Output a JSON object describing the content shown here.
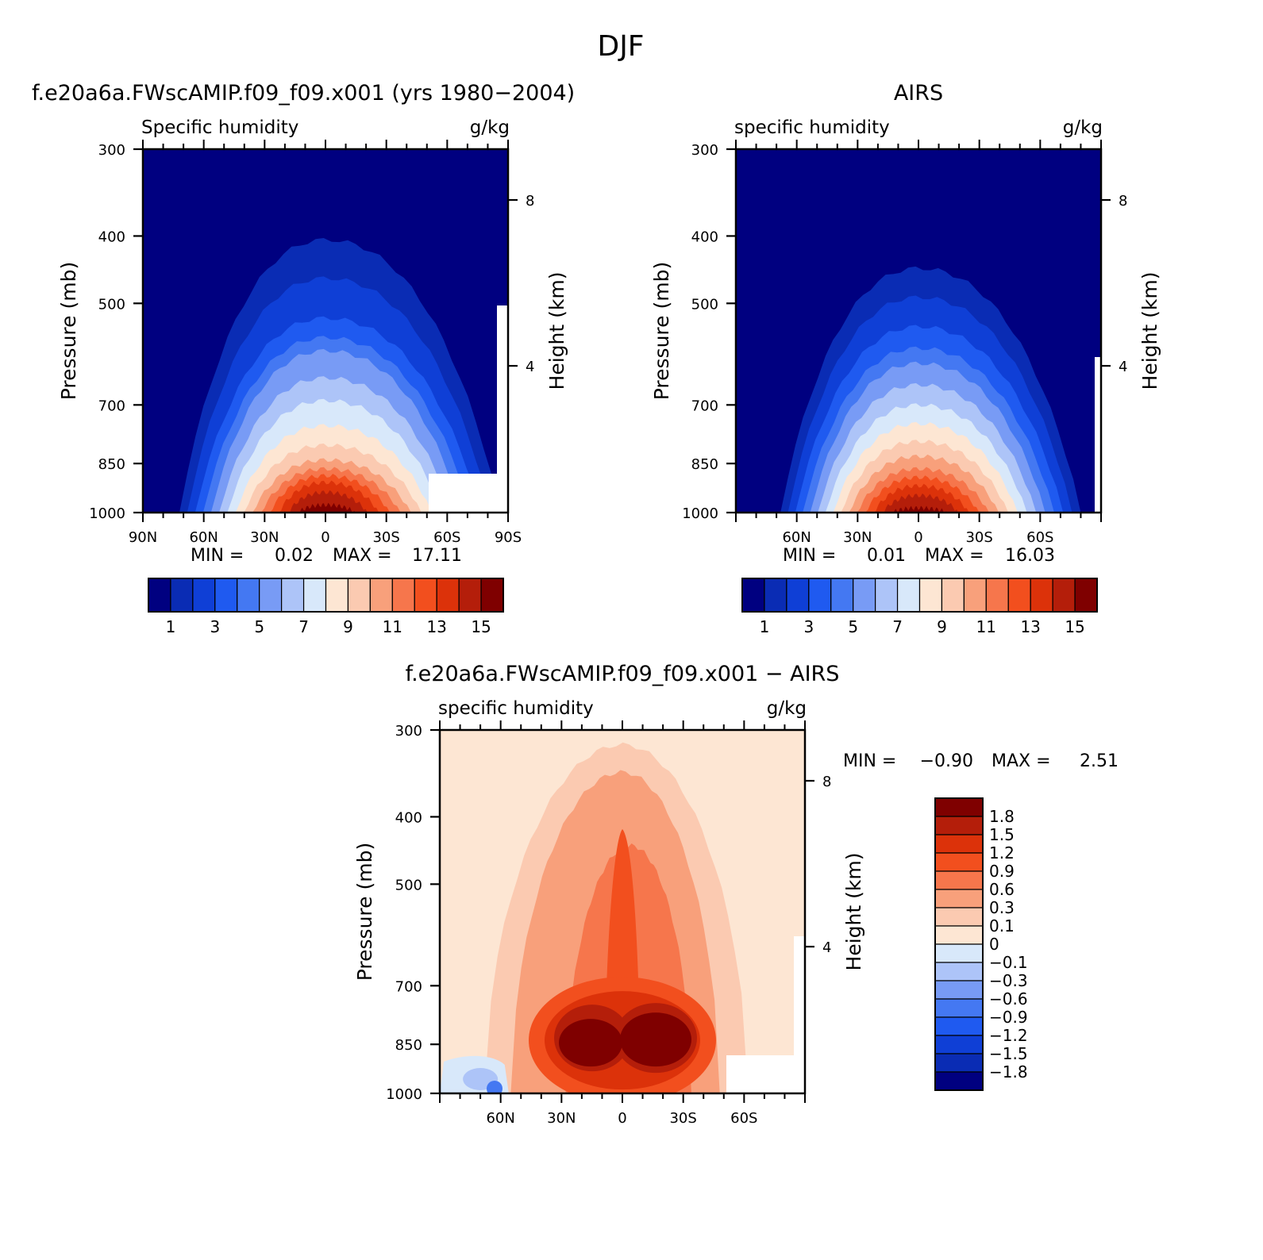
{
  "page_title": "DJF",
  "colors": {
    "model_scale": [
      "#000080",
      "#0a2cb4",
      "#0f3fd6",
      "#1f5af0",
      "#4478f2",
      "#789bf5",
      "#adc4f8",
      "#d8e8fa",
      "#fde6d3",
      "#fbcab1",
      "#f8a07b",
      "#f6764c",
      "#f24f1e",
      "#dc320a",
      "#b41e0a",
      "#7f0000"
    ],
    "diff_scale": [
      "#000080",
      "#0a2cb4",
      "#0f3fd6",
      "#1f5af0",
      "#4478f2",
      "#789bf5",
      "#adc4f8",
      "#d8e8fa",
      "#fde6d3",
      "#fbcab1",
      "#f8a07b",
      "#f6764c",
      "#f24f1e",
      "#dc320a",
      "#b41e0a",
      "#7f0000"
    ]
  },
  "chart_data": [
    {
      "type": "heatmap",
      "title": "f.e20a6a.FWscAMIP.f09_f09.x001 (yrs 1980−2004)",
      "subtitle_left": "Specific humidity",
      "units": "g/kg",
      "ylabel": "Pressure (mb)",
      "ylabel_right": "Height (km)",
      "y_ticks": [
        "300",
        "400",
        "500",
        "700",
        "850",
        "1000"
      ],
      "y_right_ticks": [
        "8",
        "4"
      ],
      "x_ticks": [
        "90N",
        "60N",
        "30N",
        "0",
        "30S",
        "60S",
        "90S"
      ],
      "xlim": [
        90,
        -90
      ],
      "ylim": [
        1000,
        300
      ],
      "min_label": "MIN =",
      "min_value": "0.02",
      "max_label": "MAX =",
      "max_value": "17.11",
      "colorbar_labels": [
        "1",
        "3",
        "5",
        "7",
        "9",
        "11",
        "13",
        "15"
      ],
      "levels": [
        1,
        2,
        3,
        4,
        5,
        6,
        7,
        8,
        9,
        10,
        11,
        12,
        13,
        14,
        15
      ],
      "peak": {
        "lat": 0,
        "pressure": 1000,
        "value": 17.11
      },
      "contour_tops_mb": [
        [
          1,
          405
        ],
        [
          2,
          460
        ],
        [
          3,
          525
        ],
        [
          4,
          560
        ],
        [
          5,
          585
        ],
        [
          6,
          640
        ],
        [
          7,
          690
        ],
        [
          8,
          750
        ],
        [
          9,
          800
        ],
        [
          10,
          840
        ],
        [
          11,
          865
        ],
        [
          12,
          885
        ],
        [
          13,
          905
        ],
        [
          14,
          935
        ],
        [
          15,
          975
        ]
      ]
    },
    {
      "type": "heatmap",
      "title": "AIRS",
      "subtitle_left": "specific humidity",
      "units": "g/kg",
      "ylabel": "Pressure (mb)",
      "ylabel_right": "Height (km)",
      "y_ticks": [
        "300",
        "400",
        "500",
        "700",
        "850",
        "1000"
      ],
      "y_right_ticks": [
        "8",
        "4"
      ],
      "x_ticks": [
        "60N",
        "30N",
        "0",
        "30S",
        "60S"
      ],
      "xlim": [
        90,
        -90
      ],
      "ylim": [
        1000,
        300
      ],
      "min_label": "MIN =",
      "min_value": "0.01",
      "max_label": "MAX =",
      "max_value": "16.03",
      "colorbar_labels": [
        "1",
        "3",
        "5",
        "7",
        "9",
        "11",
        "13",
        "15"
      ],
      "levels": [
        1,
        2,
        3,
        4,
        5,
        6,
        7,
        8,
        9,
        10,
        11,
        12,
        13,
        14,
        15
      ],
      "peak": {
        "lat": 0,
        "pressure": 1000,
        "value": 16.03
      },
      "contour_tops_mb": [
        [
          1,
          445
        ],
        [
          2,
          490
        ],
        [
          3,
          540
        ],
        [
          4,
          580
        ],
        [
          5,
          610
        ],
        [
          6,
          655
        ],
        [
          7,
          700
        ],
        [
          8,
          745
        ],
        [
          9,
          790
        ],
        [
          10,
          830
        ],
        [
          11,
          865
        ],
        [
          12,
          890
        ],
        [
          13,
          915
        ],
        [
          14,
          945
        ],
        [
          15,
          985
        ]
      ]
    },
    {
      "type": "heatmap",
      "title": "f.e20a6a.FWscAMIP.f09_f09.x001 − AIRS",
      "subtitle_left": "specific humidity",
      "units": "g/kg",
      "ylabel": "Pressure (mb)",
      "ylabel_right": "Height (km)",
      "y_ticks": [
        "300",
        "400",
        "500",
        "700",
        "850",
        "1000"
      ],
      "y_right_ticks": [
        "8",
        "4"
      ],
      "x_ticks": [
        "60N",
        "30N",
        "0",
        "30S",
        "60S"
      ],
      "xlim": [
        90,
        -90
      ],
      "ylim": [
        1000,
        300
      ],
      "min_label": "MIN =",
      "min_value": "−0.90",
      "max_label": "MAX =",
      "max_value": "2.51",
      "colorbar_labels": [
        "1.8",
        "1.5",
        "1.2",
        "0.9",
        "0.6",
        "0.3",
        "0.1",
        "0",
        "−0.1",
        "−0.3",
        "−0.6",
        "−0.9",
        "−1.2",
        "−1.5",
        "−1.8"
      ],
      "levels": [
        -1.8,
        -1.5,
        -1.2,
        -0.9,
        -0.6,
        -0.3,
        -0.1,
        0,
        0.1,
        0.3,
        0.6,
        0.9,
        1.2,
        1.5,
        1.8
      ],
      "maxima": [
        {
          "lat": -15,
          "pressure": 840,
          "value": 2.51
        },
        {
          "lat": 15,
          "pressure": 840,
          "value": 2.3
        }
      ],
      "minimum": {
        "lat": 62,
        "pressure": 1000,
        "value": -0.9
      }
    }
  ]
}
